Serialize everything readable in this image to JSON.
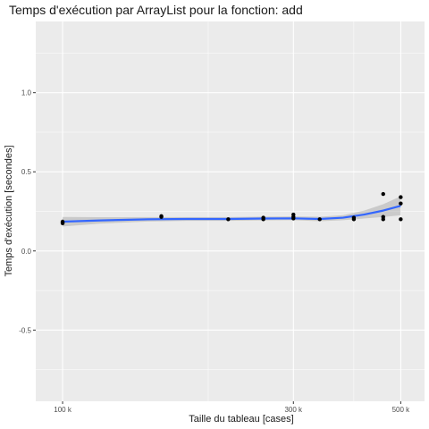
{
  "chart_data": {
    "type": "scatter",
    "title": "Temps d'exécution par ArrayList pour la fonction: add",
    "xlabel": "Taille du tableau [cases]",
    "ylabel": "Temps d'exécution [secondes]",
    "x_scale": "log10",
    "xlim": [
      88000,
      560000
    ],
    "ylim": [
      -0.95,
      1.45
    ],
    "x_ticks": [
      {
        "value": 100000,
        "label": "100 k"
      },
      {
        "value": 300000,
        "label": "300 k"
      },
      {
        "value": 500000,
        "label": "500 k"
      }
    ],
    "x_minor_ticks": [
      200000,
      400000
    ],
    "y_ticks": [
      {
        "value": -0.5,
        "label": "-0.5"
      },
      {
        "value": 0.0,
        "label": "0.0"
      },
      {
        "value": 0.5,
        "label": "0.5"
      },
      {
        "value": 1.0,
        "label": "1.0"
      }
    ],
    "y_minor_ticks": [
      -0.75,
      -0.25,
      0.25,
      0.75,
      1.25
    ],
    "grid": true,
    "point_color": "#000000",
    "smooth_color": "#3366ff",
    "band_color": "#999999",
    "panel_color": "#ebebeb",
    "points": [
      {
        "x": 100000,
        "y": 0.175
      },
      {
        "x": 100000,
        "y": 0.185
      },
      {
        "x": 100000,
        "y": 0.18
      },
      {
        "x": 160000,
        "y": 0.215
      },
      {
        "x": 160000,
        "y": 0.22
      },
      {
        "x": 220000,
        "y": 0.2
      },
      {
        "x": 260000,
        "y": 0.2
      },
      {
        "x": 260000,
        "y": 0.21
      },
      {
        "x": 300000,
        "y": 0.205
      },
      {
        "x": 300000,
        "y": 0.215
      },
      {
        "x": 300000,
        "y": 0.23
      },
      {
        "x": 340000,
        "y": 0.2
      },
      {
        "x": 400000,
        "y": 0.2
      },
      {
        "x": 400000,
        "y": 0.21
      },
      {
        "x": 460000,
        "y": 0.2
      },
      {
        "x": 460000,
        "y": 0.215
      },
      {
        "x": 460000,
        "y": 0.36
      },
      {
        "x": 500000,
        "y": 0.2
      },
      {
        "x": 500000,
        "y": 0.3
      },
      {
        "x": 500000,
        "y": 0.34
      }
    ],
    "smooth": [
      {
        "x": 100000,
        "y": 0.185,
        "lo": 0.155,
        "hi": 0.215
      },
      {
        "x": 120000,
        "y": 0.193,
        "lo": 0.173,
        "hi": 0.213
      },
      {
        "x": 150000,
        "y": 0.2,
        "lo": 0.186,
        "hi": 0.214
      },
      {
        "x": 180000,
        "y": 0.202,
        "lo": 0.19,
        "hi": 0.214
      },
      {
        "x": 220000,
        "y": 0.202,
        "lo": 0.19,
        "hi": 0.214
      },
      {
        "x": 260000,
        "y": 0.205,
        "lo": 0.193,
        "hi": 0.217
      },
      {
        "x": 300000,
        "y": 0.206,
        "lo": 0.194,
        "hi": 0.218
      },
      {
        "x": 340000,
        "y": 0.202,
        "lo": 0.188,
        "hi": 0.216
      },
      {
        "x": 380000,
        "y": 0.21,
        "lo": 0.194,
        "hi": 0.226
      },
      {
        "x": 420000,
        "y": 0.23,
        "lo": 0.205,
        "hi": 0.255
      },
      {
        "x": 460000,
        "y": 0.255,
        "lo": 0.215,
        "hi": 0.295
      },
      {
        "x": 500000,
        "y": 0.285,
        "lo": 0.225,
        "hi": 0.345
      }
    ]
  }
}
